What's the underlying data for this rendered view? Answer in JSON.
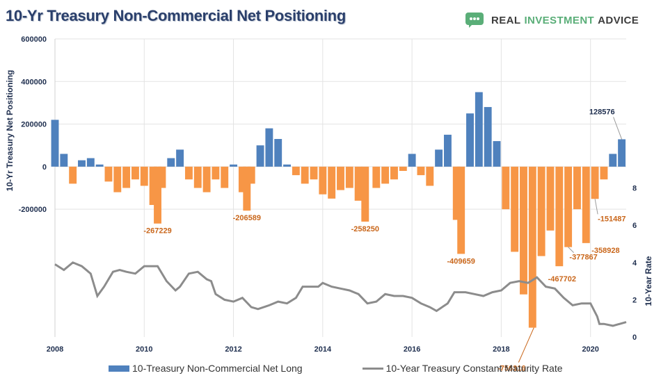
{
  "header": {
    "title": "10-Yr Treasury Non-Commercial Net Positioning",
    "brand": {
      "part1": "REAL",
      "part2": "INVESTMENT",
      "part3": "ADVICE",
      "icon": "chat-bubble-logo-icon",
      "color": "#5aae78"
    }
  },
  "legend": {
    "series1": "10-Treasury Non-Commercial Net Long",
    "series2": "10-Year Treasury Constant Maturity Rate"
  },
  "colors": {
    "positive": "#4f81bd",
    "negative": "#f79646",
    "rate": "#8c8c8c",
    "annotation": "#c9661a",
    "grid": "#e3e3e3"
  },
  "chart_data": {
    "type": "bar",
    "title": "10-Yr Treasury Non-Commercial Net Positioning",
    "xlabel": "",
    "ylabel": "10-Yr Treasury Net Positioning",
    "y2label": "10-Year Rate",
    "xlim": [
      2008,
      2020.8
    ],
    "ylim": [
      -800000,
      600000
    ],
    "y2lim": [
      0,
      16
    ],
    "x_ticks": [
      "2008",
      "2010",
      "2012",
      "2014",
      "2016",
      "2018",
      "2020"
    ],
    "y_ticks": [
      "600000",
      "400000",
      "200000",
      "0",
      "-200000"
    ],
    "y2_ticks": [
      "8",
      "6",
      "4",
      "2",
      "0"
    ],
    "grid": true,
    "legend_position": "bottom",
    "series": [
      {
        "name": "10-Treasury Non-Commercial Net Long",
        "type": "bar",
        "x": [
          2008.0,
          2008.2,
          2008.4,
          2008.6,
          2008.8,
          2009.0,
          2009.2,
          2009.4,
          2009.6,
          2009.8,
          2010.0,
          2010.2,
          2010.3,
          2010.4,
          2010.6,
          2010.8,
          2011.0,
          2011.2,
          2011.4,
          2011.6,
          2011.8,
          2012.0,
          2012.2,
          2012.3,
          2012.4,
          2012.6,
          2012.8,
          2013.0,
          2013.2,
          2013.4,
          2013.6,
          2013.8,
          2014.0,
          2014.2,
          2014.4,
          2014.6,
          2014.8,
          2014.95,
          2015.2,
          2015.4,
          2015.6,
          2015.8,
          2016.0,
          2016.2,
          2016.4,
          2016.6,
          2016.8,
          2017.0,
          2017.1,
          2017.3,
          2017.5,
          2017.7,
          2017.9,
          2018.1,
          2018.3,
          2018.5,
          2018.7,
          2018.9,
          2019.1,
          2019.3,
          2019.5,
          2019.7,
          2019.9,
          2020.1,
          2020.3,
          2020.5,
          2020.7
        ],
        "values": [
          220000,
          60000,
          -80000,
          30000,
          40000,
          10000,
          -70000,
          -120000,
          -100000,
          -60000,
          -90000,
          -180000,
          -267229,
          -100000,
          40000,
          80000,
          -60000,
          -100000,
          -120000,
          -60000,
          -100000,
          10000,
          -120000,
          -206589,
          -80000,
          100000,
          180000,
          130000,
          10000,
          -40000,
          -80000,
          -60000,
          -130000,
          -150000,
          -110000,
          -100000,
          -160000,
          -258250,
          -100000,
          -80000,
          -60000,
          -20000,
          60000,
          -40000,
          -90000,
          80000,
          150000,
          -250000,
          -409659,
          250000,
          350000,
          280000,
          120000,
          -200000,
          -400000,
          -600000,
          -756316,
          -420000,
          -300000,
          -467702,
          -377867,
          -200000,
          -358928,
          -151487,
          -60000,
          60000,
          128576
        ]
      },
      {
        "name": "10-Year Treasury Constant Maturity Rate",
        "type": "line",
        "axis": "secondary",
        "x": [
          2008.0,
          2008.2,
          2008.4,
          2008.6,
          2008.8,
          2008.95,
          2009.1,
          2009.3,
          2009.45,
          2009.6,
          2009.8,
          2010.0,
          2010.2,
          2010.3,
          2010.5,
          2010.7,
          2010.8,
          2011.0,
          2011.2,
          2011.4,
          2011.5,
          2011.6,
          2011.8,
          2012.0,
          2012.2,
          2012.4,
          2012.55,
          2012.8,
          2013.0,
          2013.2,
          2013.4,
          2013.55,
          2013.7,
          2013.9,
          2014.0,
          2014.2,
          2014.4,
          2014.6,
          2014.8,
          2015.0,
          2015.2,
          2015.4,
          2015.6,
          2015.8,
          2016.0,
          2016.2,
          2016.4,
          2016.55,
          2016.8,
          2016.95,
          2017.2,
          2017.4,
          2017.6,
          2017.8,
          2018.0,
          2018.2,
          2018.4,
          2018.6,
          2018.8,
          2019.0,
          2019.2,
          2019.4,
          2019.6,
          2019.8,
          2020.0,
          2020.15,
          2020.2,
          2020.3,
          2020.5,
          2020.8
        ],
        "values": [
          3.9,
          3.6,
          4.0,
          3.8,
          3.4,
          2.2,
          2.7,
          3.5,
          3.6,
          3.5,
          3.4,
          3.8,
          3.8,
          3.8,
          3.0,
          2.5,
          2.7,
          3.4,
          3.5,
          3.1,
          3.0,
          2.3,
          2.0,
          1.9,
          2.1,
          1.6,
          1.5,
          1.7,
          1.9,
          1.8,
          2.1,
          2.7,
          2.7,
          2.7,
          2.9,
          2.7,
          2.6,
          2.5,
          2.3,
          1.8,
          1.9,
          2.3,
          2.2,
          2.2,
          2.1,
          1.8,
          1.6,
          1.4,
          1.8,
          2.4,
          2.4,
          2.3,
          2.2,
          2.4,
          2.5,
          2.9,
          3.0,
          2.9,
          3.2,
          2.7,
          2.6,
          2.1,
          1.7,
          1.8,
          1.8,
          1.1,
          0.7,
          0.7,
          0.6,
          0.8
        ]
      }
    ],
    "annotations": [
      {
        "text": "-267229",
        "x": 2010.3,
        "y": -267229
      },
      {
        "text": "-206589",
        "x": 2012.3,
        "y": -206589
      },
      {
        "text": "-258250",
        "x": 2014.95,
        "y": -258250
      },
      {
        "text": "-409659",
        "x": 2017.1,
        "y": -409659
      },
      {
        "text": "-756316",
        "x": 2018.7,
        "y": -756316
      },
      {
        "text": "-467702",
        "x": 2019.3,
        "y": -467702
      },
      {
        "text": "-377867",
        "x": 2019.5,
        "y": -377867
      },
      {
        "text": "-358928",
        "x": 2019.9,
        "y": -358928
      },
      {
        "text": "-151487",
        "x": 2020.1,
        "y": -151487
      },
      {
        "text": "128576",
        "x": 2020.7,
        "y": 128576
      }
    ]
  }
}
